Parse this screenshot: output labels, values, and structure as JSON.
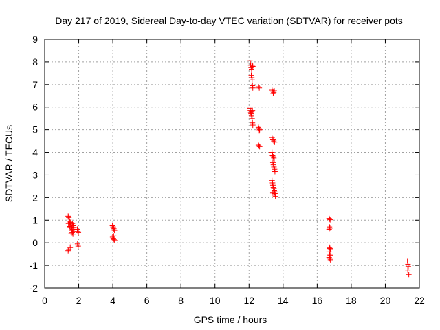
{
  "chart_data": {
    "type": "scatter",
    "title": "Day 217 of 2019, Sidereal Day-to-day VTEC variation (SDTVAR) for receiver pots",
    "xlabel": "GPS time / hours",
    "ylabel": "SDTVAR / TECUs",
    "xlim": [
      0,
      22
    ],
    "ylim": [
      -2,
      9
    ],
    "xticks": [
      0,
      2,
      4,
      6,
      8,
      10,
      12,
      14,
      16,
      18,
      20,
      22
    ],
    "yticks": [
      -2,
      -1,
      0,
      1,
      2,
      3,
      4,
      5,
      6,
      7,
      8,
      9
    ],
    "grid": true,
    "marker": "+",
    "marker_color": "#ff0000",
    "series": [
      {
        "name": "SDTVAR",
        "points": [
          [
            1.38,
            1.18
          ],
          [
            1.42,
            1.12
          ],
          [
            1.45,
            1.05
          ],
          [
            1.4,
            0.85
          ],
          [
            1.44,
            0.78
          ],
          [
            1.48,
            0.72
          ],
          [
            1.52,
            0.9
          ],
          [
            1.55,
            0.82
          ],
          [
            1.58,
            0.65
          ],
          [
            1.6,
            0.55
          ],
          [
            1.62,
            0.45
          ],
          [
            1.65,
            0.6
          ],
          [
            1.68,
            0.75
          ],
          [
            1.7,
            0.5
          ],
          [
            1.56,
            0.4
          ],
          [
            1.5,
            0.7
          ],
          [
            1.63,
            0.85
          ],
          [
            1.66,
            0.38
          ],
          [
            1.47,
            0.95
          ],
          [
            1.72,
            0.68
          ],
          [
            1.38,
            -0.35
          ],
          [
            1.42,
            -0.3
          ],
          [
            1.5,
            -0.2
          ],
          [
            1.55,
            -0.1
          ],
          [
            1.92,
            0.6
          ],
          [
            1.95,
            0.5
          ],
          [
            1.98,
            0.45
          ],
          [
            1.93,
            -0.05
          ],
          [
            1.97,
            -0.15
          ],
          [
            3.98,
            0.75
          ],
          [
            4.02,
            0.7
          ],
          [
            4.06,
            0.62
          ],
          [
            4.1,
            0.55
          ],
          [
            3.99,
            0.25
          ],
          [
            4.03,
            0.2
          ],
          [
            4.07,
            0.15
          ],
          [
            4.11,
            0.1
          ],
          [
            4.05,
            0.3
          ],
          [
            12.05,
            8.05
          ],
          [
            12.08,
            7.95
          ],
          [
            12.1,
            7.85
          ],
          [
            12.12,
            7.75
          ],
          [
            12.15,
            7.65
          ],
          [
            12.13,
            7.4
          ],
          [
            12.16,
            7.3
          ],
          [
            12.18,
            7.2
          ],
          [
            12.2,
            6.95
          ],
          [
            12.22,
            6.85
          ],
          [
            12.2,
            7.85
          ],
          [
            12.22,
            7.8
          ],
          [
            12.05,
            5.95
          ],
          [
            12.08,
            5.85
          ],
          [
            12.1,
            5.75
          ],
          [
            12.12,
            5.7
          ],
          [
            12.15,
            5.6
          ],
          [
            12.18,
            5.5
          ],
          [
            12.2,
            5.3
          ],
          [
            12.22,
            5.2
          ],
          [
            12.16,
            5.8
          ],
          [
            12.2,
            5.85
          ],
          [
            12.55,
            6.9
          ],
          [
            12.6,
            6.85
          ],
          [
            12.55,
            5.1
          ],
          [
            12.58,
            5.05
          ],
          [
            12.62,
            5.0
          ],
          [
            12.6,
            4.95
          ],
          [
            12.55,
            4.32
          ],
          [
            12.58,
            4.28
          ],
          [
            12.62,
            4.25
          ],
          [
            13.35,
            6.75
          ],
          [
            13.4,
            6.7
          ],
          [
            13.45,
            6.65
          ],
          [
            13.48,
            6.72
          ],
          [
            13.42,
            6.6
          ],
          [
            13.35,
            4.65
          ],
          [
            13.4,
            4.58
          ],
          [
            13.45,
            4.5
          ],
          [
            13.5,
            4.45
          ],
          [
            13.35,
            4.0
          ],
          [
            13.38,
            3.85
          ],
          [
            13.42,
            3.8
          ],
          [
            13.45,
            3.75
          ],
          [
            13.48,
            3.7
          ],
          [
            13.4,
            3.55
          ],
          [
            13.43,
            3.45
          ],
          [
            13.46,
            3.35
          ],
          [
            13.5,
            3.25
          ],
          [
            13.52,
            3.15
          ],
          [
            13.35,
            2.75
          ],
          [
            13.38,
            2.65
          ],
          [
            13.4,
            2.55
          ],
          [
            13.43,
            2.45
          ],
          [
            13.46,
            2.4
          ],
          [
            13.48,
            2.3
          ],
          [
            13.5,
            2.25
          ],
          [
            13.52,
            2.18
          ],
          [
            13.55,
            2.05
          ],
          [
            13.4,
            2.2
          ],
          [
            16.7,
            1.08
          ],
          [
            16.73,
            1.05
          ],
          [
            16.76,
            1.02
          ],
          [
            16.72,
            0.7
          ],
          [
            16.75,
            0.65
          ],
          [
            16.7,
            0.6
          ],
          [
            16.72,
            -0.2
          ],
          [
            16.75,
            -0.25
          ],
          [
            16.78,
            -0.3
          ],
          [
            16.7,
            -0.4
          ],
          [
            16.73,
            -0.5
          ],
          [
            16.76,
            -0.55
          ],
          [
            16.7,
            -0.65
          ],
          [
            16.74,
            -0.7
          ],
          [
            16.78,
            -0.75
          ],
          [
            21.3,
            -0.8
          ],
          [
            21.33,
            -0.95
          ],
          [
            21.35,
            -1.05
          ],
          [
            21.32,
            -1.2
          ],
          [
            21.38,
            -1.4
          ]
        ]
      }
    ]
  }
}
